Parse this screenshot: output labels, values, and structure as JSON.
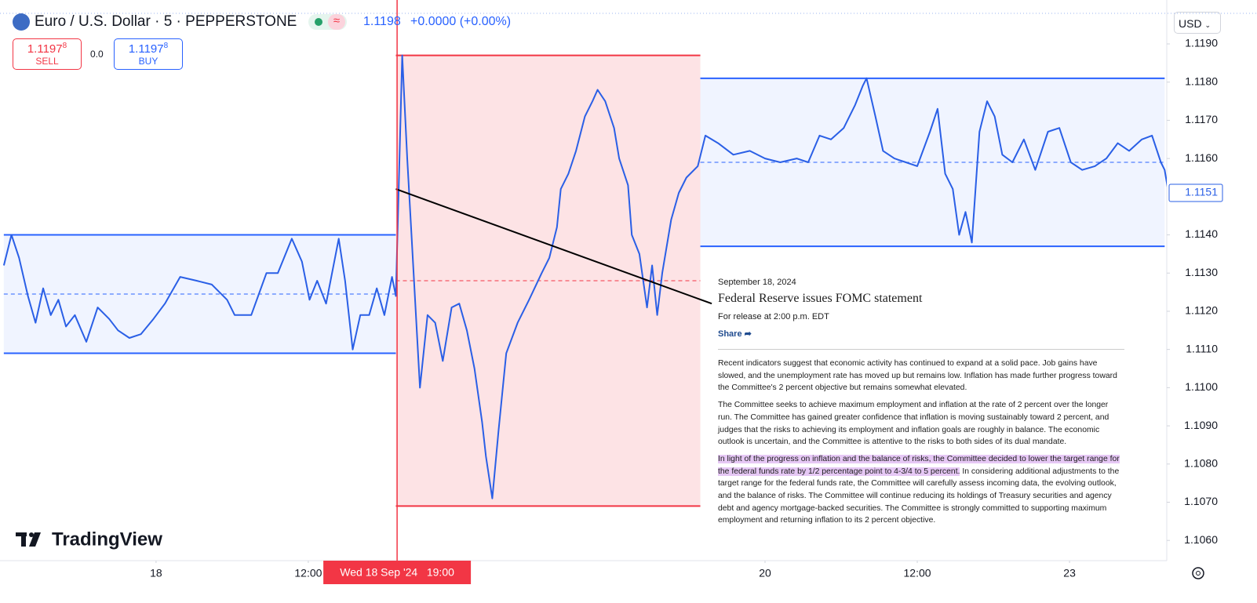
{
  "header": {
    "symbol": "Euro / U.S. Dollar · 5 · PEPPERSTONE",
    "price": "1.1198",
    "change": "+0.0000 (+0.00%)",
    "sell": {
      "price": "1.1197",
      "pip": "8",
      "label": "SELL"
    },
    "spread": "0.0",
    "buy": {
      "price": "1.1197",
      "pip": "8",
      "label": "BUY"
    },
    "currency": "USD",
    "brand": "TradingView"
  },
  "news": {
    "date": "September 18, 2024",
    "title": "Federal Reserve issues FOMC statement",
    "release": "For release at 2:00 p.m. EDT",
    "share": "Share",
    "paragraphs": [
      "Recent indicators suggest that economic activity has continued to expand at a solid pace. Job gains have slowed, and the unemployment rate has moved up but remains low. Inflation has made further progress toward the Committee's 2 percent objective but remains somewhat elevated.",
      "The Committee seeks to achieve maximum employment and inflation at the rate of 2 percent over the longer run. The Committee has gained greater confidence that inflation is moving sustainably toward 2 percent, and judges that the risks to achieving its employment and inflation goals are roughly in balance. The economic outlook is uncertain, and the Committee is attentive to the risks to both sides of its dual mandate."
    ],
    "highlight": "In light of the progress on inflation and the balance of risks, the Committee decided to lower the target range for the federal funds rate by 1/2 percentage point to 4-3/4 to 5 percent.",
    "rest": "In considering additional adjustments to the target range for the federal funds rate, the Committee will carefully assess incoming data, the evolving outlook, and the balance of risks. The Committee will continue reducing its holdings of Treasury securities and agency debt and agency mortgage-backed securities. The Committee is strongly committed to supporting maximum employment and returning inflation to its 2 percent objective."
  },
  "chart_data": {
    "type": "line",
    "color": "#2a5fe6",
    "x": [
      0,
      0.6,
      1.2,
      1.9,
      2.5,
      3.1,
      3.7,
      4.3,
      4.9,
      5.6,
      6.5,
      7.4,
      8.3,
      9.0,
      9.9,
      10.8,
      11.8,
      12.7,
      13.9,
      15.2,
      16.4,
      17.6,
      18.2,
      19.5,
      20.7,
      21.6,
      22.7,
      23.5,
      24.1,
      24.7,
      25.4,
      26.4,
      26.9,
      27.5,
      28.1,
      28.8,
      29.4,
      30.0,
      30.6,
      30.9,
      31.4,
      31.8,
      32.1,
      32.8,
      33.4,
      34.0,
      34.6,
      35.3,
      35.9,
      36.5,
      37.1,
      37.7,
      38.0,
      38.5,
      39.0,
      39.6,
      40.5,
      41.4,
      42.4,
      43.0,
      43.6,
      43.9,
      44.5,
      45.1,
      45.8,
      46.4,
      46.8,
      47.4,
      48.1,
      48.5,
      49.2,
      49.5,
      50.1,
      50.7,
      51.1,
      51.5,
      51.9,
      52.6,
      53.2,
      53.8,
      54.7,
      55.3,
      56.3,
      57.5,
      58.8,
      60.0,
      61.2,
      62.5,
      63.4,
      64.3,
      65.2,
      66.2,
      67.1,
      67.7,
      68.0,
      68.7,
      69.3,
      70.2,
      71.1,
      72.0,
      73.0,
      73.6,
      74.2,
      74.8,
      75.3,
      75.8,
      76.3,
      76.9,
      77.5,
      78.1,
      78.7,
      79.5,
      80.4,
      81.3,
      82.3,
      83.2,
      84.1,
      85.0,
      86.0,
      86.9,
      87.8,
      88.7,
      89.7,
      90.5,
      91.2,
      91.5,
      91.8
    ],
    "values": [
      1.1132,
      1.114,
      1.1134,
      1.1124,
      1.1117,
      1.1126,
      1.1119,
      1.1123,
      1.1116,
      1.1119,
      1.1112,
      1.1121,
      1.1118,
      1.1115,
      1.1113,
      1.1114,
      1.1118,
      1.1122,
      1.1129,
      1.1128,
      1.1127,
      1.1123,
      1.1119,
      1.1119,
      1.113,
      1.113,
      1.1139,
      1.1133,
      1.1123,
      1.1128,
      1.1122,
      1.1139,
      1.1128,
      1.111,
      1.1119,
      1.1119,
      1.1126,
      1.1119,
      1.1129,
      1.1124,
      1.1187,
      1.116,
      1.1142,
      1.11,
      1.1119,
      1.1117,
      1.1107,
      1.1121,
      1.1122,
      1.1115,
      1.1105,
      1.1091,
      1.1082,
      1.1071,
      1.1089,
      1.1109,
      1.1117,
      1.1123,
      1.113,
      1.1134,
      1.1142,
      1.1152,
      1.1156,
      1.1162,
      1.1171,
      1.1175,
      1.1178,
      1.1175,
      1.1168,
      1.116,
      1.1153,
      1.114,
      1.1135,
      1.1121,
      1.1132,
      1.1119,
      1.113,
      1.1144,
      1.1151,
      1.1155,
      1.1158,
      1.1166,
      1.1164,
      1.1161,
      1.1162,
      1.116,
      1.1159,
      1.116,
      1.1159,
      1.1166,
      1.1165,
      1.1168,
      1.1174,
      1.1179,
      1.1181,
      1.1171,
      1.1162,
      1.116,
      1.1159,
      1.1158,
      1.1167,
      1.1173,
      1.1156,
      1.1152,
      1.114,
      1.1146,
      1.1138,
      1.1167,
      1.1175,
      1.1171,
      1.1161,
      1.1159,
      1.1165,
      1.1157,
      1.1167,
      1.1168,
      1.1159,
      1.1157,
      1.1158,
      1.116,
      1.1164,
      1.1162,
      1.1165,
      1.1166,
      1.1159,
      1.1157,
      1.1151
    ],
    "xlim": [
      -0.3,
      91.85
    ],
    "ylim": [
      1.10547,
      1.12015
    ],
    "xticks": [
      {
        "value": 12,
        "label": "18"
      },
      {
        "value": 24,
        "label": "12:00"
      },
      {
        "value": 60,
        "label": "20"
      },
      {
        "value": 72,
        "label": "12:00"
      },
      {
        "value": 84,
        "label": "23"
      }
    ],
    "yticks": [
      {
        "value": 1.119,
        "label": "1.1190"
      },
      {
        "value": 1.118,
        "label": "1.1180"
      },
      {
        "value": 1.117,
        "label": "1.1170"
      },
      {
        "value": 1.116,
        "label": "1.1160"
      },
      {
        "value": 1.114,
        "label": "1.1140"
      },
      {
        "value": 1.113,
        "label": "1.1130"
      },
      {
        "value": 1.112,
        "label": "1.1120"
      },
      {
        "value": 1.111,
        "label": "1.1110"
      },
      {
        "value": 1.11,
        "label": "1.1100"
      },
      {
        "value": 1.109,
        "label": "1.1090"
      },
      {
        "value": 1.108,
        "label": "1.1080"
      },
      {
        "value": 1.107,
        "label": "1.1070"
      },
      {
        "value": 1.106,
        "label": "1.1060"
      }
    ],
    "rectangles": [
      {
        "x": [
          0,
          30.9
        ],
        "y": [
          1.1109,
          1.114
        ],
        "color": "#2962ff",
        "fill": "rgba(41,98,255,0.07)"
      },
      {
        "x": [
          30.9,
          54.9
        ],
        "y": [
          1.1069,
          1.1187
        ],
        "color": "#f23645",
        "fill": "rgba(242,54,69,0.14)"
      },
      {
        "x": [
          54.9,
          91.5
        ],
        "y": [
          1.1137,
          1.1181
        ],
        "color": "#2962ff",
        "fill": "rgba(41,98,255,0.07)"
      }
    ],
    "trendline": {
      "x": [
        30.9,
        55.8
      ],
      "y": [
        1.1152,
        1.1122
      ],
      "color": "#000000"
    },
    "crosshair": {
      "x": 31,
      "label": "Wed 18 Sep '24   19:00",
      "color": "#f23645"
    },
    "last_price": 1.1151
  }
}
